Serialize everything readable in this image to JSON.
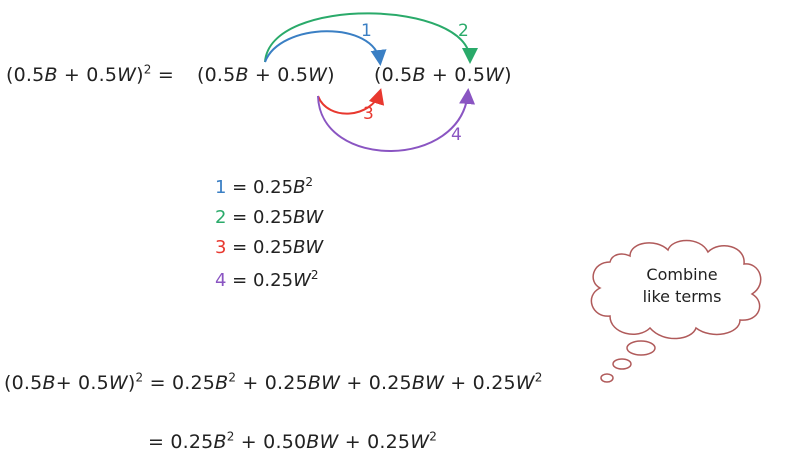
{
  "top_equation": {
    "lhs_open": "(0.5",
    "lhs_B": "B",
    "lhs_plus": " + 0.5",
    "lhs_W": "W",
    "lhs_close": ")",
    "lhs_exp": "2",
    "equals": " = ",
    "f1_open": "(0.5",
    "f1_B": "B",
    "f1_plus": " + 0.5",
    "f1_W": "W",
    "f1_close": ")",
    "f2_open": "(0.5",
    "f2_B": "B",
    "f2_plus": " + 0.5",
    "f2_W": "W",
    "f2_close": ")"
  },
  "arrows": [
    {
      "label": "1",
      "color": "#3a7fc4"
    },
    {
      "label": "2",
      "color": "#2aaa6a"
    },
    {
      "label": "3",
      "color": "#e8382f"
    },
    {
      "label": "4",
      "color": "#8a55c2"
    }
  ],
  "products": [
    {
      "num": "1",
      "eq": " = 0.25",
      "var": "B",
      "exp": "2",
      "tail": ""
    },
    {
      "num": "2",
      "eq": " = 0.25",
      "var": "BW",
      "exp": "",
      "tail": ""
    },
    {
      "num": "3",
      "eq": " = 0.25",
      "var": "BW",
      "exp": "",
      "tail": ""
    },
    {
      "num": "4",
      "eq": " = 0.25",
      "var": "W",
      "exp": "2",
      "tail": ""
    }
  ],
  "cloud": {
    "line1": "Combine",
    "line2": "like terms"
  },
  "expanded": {
    "lhs_open": "(0.5",
    "lhs_B": "B",
    "lhs_plus": "+ 0.5",
    "lhs_W": "W",
    "lhs_close": ")",
    "lhs_exp": "2",
    "rhs_a": " = 0.25",
    "rhs_a_var": "B",
    "rhs_a_exp": "2",
    "rhs_b": " + 0.25",
    "rhs_b_var": "BW",
    "rhs_c": " + 0.25",
    "rhs_c_var": "BW",
    "rhs_d": " + 0.25",
    "rhs_d_var": "W",
    "rhs_d_exp": "2"
  },
  "result": {
    "a": "= 0.25",
    "a_var": "B",
    "a_exp": "2",
    "b": " + 0.50",
    "b_var": "BW",
    "c": " + 0.25",
    "c_var": "W",
    "c_exp": "2"
  }
}
